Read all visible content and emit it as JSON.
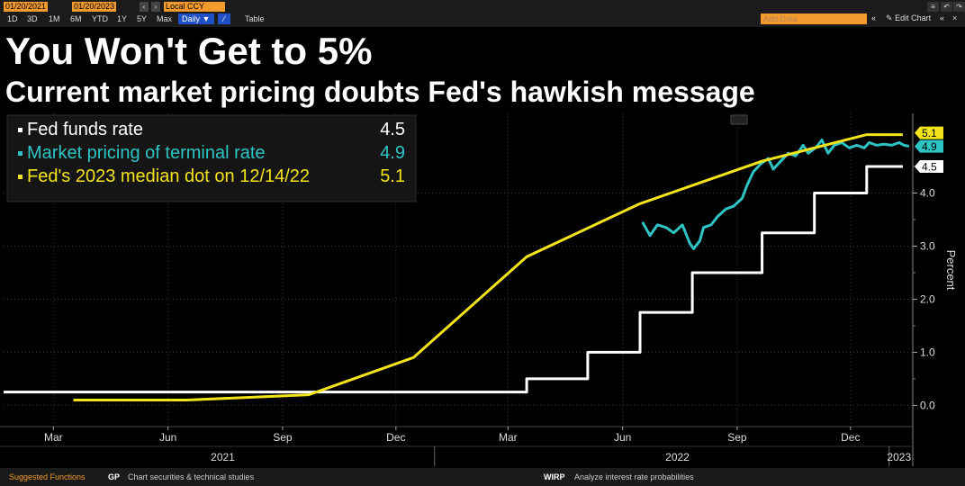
{
  "toolbar": {
    "start_date": "01/20/2021",
    "end_date": "01/20/2023",
    "currency": "Local CCY",
    "ranges": [
      "1D",
      "3D",
      "1M",
      "6M",
      "YTD",
      "1Y",
      "5Y",
      "Max"
    ],
    "frequency": "Daily ▼",
    "table_label": "Table",
    "add_data_placeholder": "Add Data",
    "edit_chart_label": "Edit Chart"
  },
  "title": "You Won't Get to 5%",
  "subtitle": "Current market pricing doubts Fed's hawkish message",
  "bottom_bar": {
    "suggested": "Suggested Functions",
    "gp_code": "GP",
    "gp_desc": "Chart securities & technical studies",
    "wirp_code": "WIRP",
    "wirp_desc": "Analyze interest rate probabilities"
  },
  "colors": {
    "fed_funds": "#ffffff",
    "market": "#2ec4c4",
    "dot": "#f2e31a",
    "background": "#000000",
    "toolbar": "#1b1b1b",
    "accent_orange": "#f29a2e"
  },
  "chart_data": {
    "type": "line",
    "ylabel": "Percent",
    "ylim": [
      -0.4,
      5.5
    ],
    "yticks": [
      "0.0",
      "1.0",
      "2.0",
      "3.0",
      "4.0"
    ],
    "xlim": [
      "2021-01-20",
      "2023-01-20"
    ],
    "xticks": [
      {
        "date": "2021-03-01",
        "label": "Mar"
      },
      {
        "date": "2021-06-01",
        "label": "Jun"
      },
      {
        "date": "2021-09-01",
        "label": "Sep"
      },
      {
        "date": "2021-12-01",
        "label": "Dec"
      },
      {
        "date": "2022-03-01",
        "label": "Mar"
      },
      {
        "date": "2022-06-01",
        "label": "Jun"
      },
      {
        "date": "2022-09-01",
        "label": "Sep"
      },
      {
        "date": "2022-12-01",
        "label": "Dec"
      }
    ],
    "year_labels": [
      {
        "date": "2021-07-15",
        "label": "2021"
      },
      {
        "date": "2022-07-15",
        "label": "2022"
      },
      {
        "date": "2023-01-09",
        "label": "2023"
      }
    ],
    "legend_position": "top-left",
    "series": [
      {
        "name": "Fed funds rate",
        "legend_value": "4.5",
        "end_label": "4.5",
        "color": "#ffffff",
        "step": true,
        "points": [
          [
            "2021-01-20",
            0.25
          ],
          [
            "2022-03-16",
            0.5
          ],
          [
            "2022-05-04",
            1.0
          ],
          [
            "2022-06-15",
            1.75
          ],
          [
            "2022-07-27",
            2.5
          ],
          [
            "2022-09-21",
            3.25
          ],
          [
            "2022-11-02",
            4.0
          ],
          [
            "2022-12-14",
            4.5
          ],
          [
            "2023-01-12",
            4.5
          ]
        ]
      },
      {
        "name": "Market pricing of terminal rate",
        "legend_value": "4.9",
        "end_label": "4.9",
        "color": "#2ec4c4",
        "points": [
          [
            "2022-06-17",
            3.45
          ],
          [
            "2022-06-23",
            3.2
          ],
          [
            "2022-06-29",
            3.4
          ],
          [
            "2022-07-06",
            3.35
          ],
          [
            "2022-07-12",
            3.25
          ],
          [
            "2022-07-19",
            3.4
          ],
          [
            "2022-07-25",
            3.05
          ],
          [
            "2022-07-28",
            2.95
          ],
          [
            "2022-08-02",
            3.1
          ],
          [
            "2022-08-05",
            3.35
          ],
          [
            "2022-08-11",
            3.4
          ],
          [
            "2022-08-16",
            3.55
          ],
          [
            "2022-08-23",
            3.7
          ],
          [
            "2022-08-29",
            3.75
          ],
          [
            "2022-09-05",
            3.9
          ],
          [
            "2022-09-09",
            4.15
          ],
          [
            "2022-09-14",
            4.4
          ],
          [
            "2022-09-20",
            4.55
          ],
          [
            "2022-09-26",
            4.65
          ],
          [
            "2022-09-30",
            4.45
          ],
          [
            "2022-10-06",
            4.6
          ],
          [
            "2022-10-12",
            4.75
          ],
          [
            "2022-10-18",
            4.7
          ],
          [
            "2022-10-24",
            4.9
          ],
          [
            "2022-10-28",
            4.75
          ],
          [
            "2022-11-03",
            4.85
          ],
          [
            "2022-11-08",
            5.0
          ],
          [
            "2022-11-13",
            4.75
          ],
          [
            "2022-11-18",
            4.9
          ],
          [
            "2022-11-24",
            4.95
          ],
          [
            "2022-11-30",
            4.85
          ],
          [
            "2022-12-06",
            4.9
          ],
          [
            "2022-12-12",
            4.85
          ],
          [
            "2022-12-16",
            4.95
          ],
          [
            "2022-12-22",
            4.9
          ],
          [
            "2022-12-28",
            4.92
          ],
          [
            "2023-01-03",
            4.9
          ],
          [
            "2023-01-09",
            4.95
          ],
          [
            "2023-01-13",
            4.9
          ],
          [
            "2023-01-17",
            4.88
          ]
        ]
      },
      {
        "name": "Fed's 2023 median dot  on 12/14/22",
        "legend_value": "5.1",
        "end_label": "5.1",
        "color": "#f2e31a",
        "points": [
          [
            "2021-03-17",
            0.1
          ],
          [
            "2021-06-16",
            0.1
          ],
          [
            "2021-09-22",
            0.2
          ],
          [
            "2021-12-15",
            0.9
          ],
          [
            "2022-03-16",
            2.8
          ],
          [
            "2022-06-15",
            3.8
          ],
          [
            "2022-09-21",
            4.6
          ],
          [
            "2022-12-14",
            5.1
          ],
          [
            "2023-01-12",
            5.1
          ]
        ]
      }
    ]
  }
}
